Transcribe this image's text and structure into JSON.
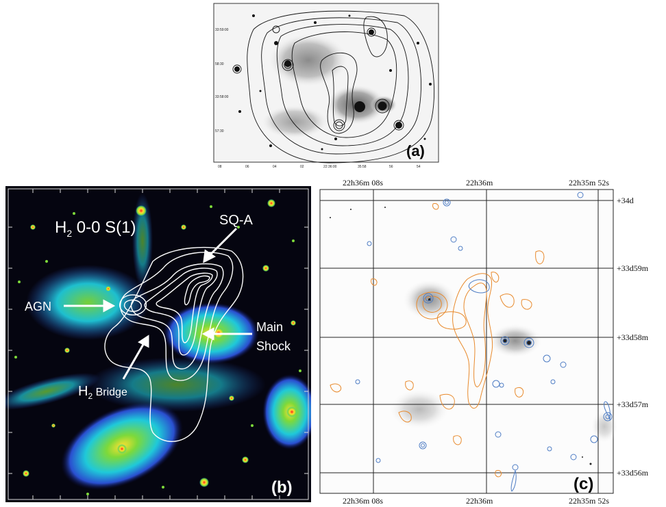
{
  "panel_a": {
    "tag": "(a)",
    "dec_labels": [
      "33:59:00",
      "58:30",
      "33:58:00",
      "57:30"
    ],
    "ra_labels": [
      "08",
      "06",
      "04",
      "02",
      "22:36:00",
      "35:58",
      "56",
      "54"
    ]
  },
  "panel_b": {
    "tag": "(b)",
    "title_main": "H",
    "title_sub": "2",
    "title_rest": " 0-0 S(1)",
    "label_sqa": "SQ-A",
    "label_agn": "AGN",
    "label_main": "Main",
    "label_shock": "Shock",
    "label_h2": "H",
    "label_h2_sub": "2",
    "label_bridge": " Bridge"
  },
  "panel_c": {
    "tag": "(c)",
    "ra_top": [
      "22h36m 08s",
      "22h36m",
      "22h35m 52s"
    ],
    "ra_bottom": [
      "22h36m 08s",
      "22h36m",
      "22h35m 52s"
    ],
    "dec_labels": [
      "+34d",
      "+33d59m",
      "+33d58m",
      "+33d57m",
      "+33d56m"
    ],
    "colors": {
      "orange_contour": "#e8892b",
      "blue_contour": "#4d7cc4"
    }
  }
}
